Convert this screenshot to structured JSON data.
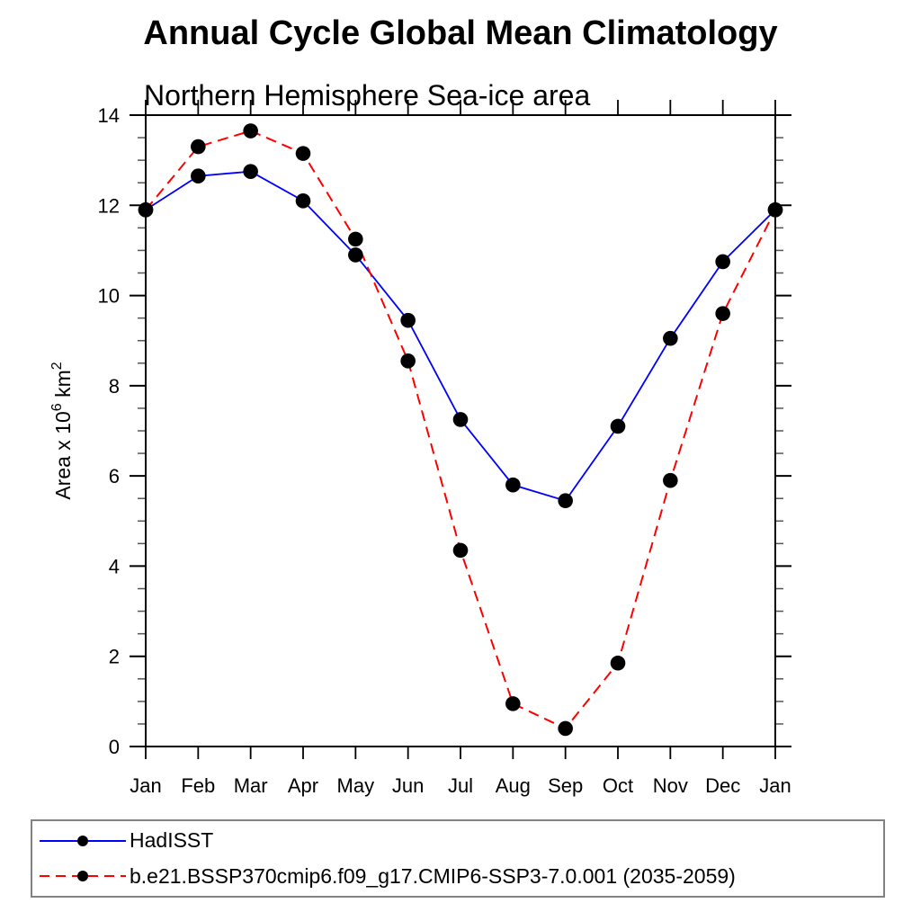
{
  "chart_data": {
    "type": "line",
    "title": "Annual Cycle Global Mean Climatology",
    "subtitle": "Northern Hemisphere Sea-ice area",
    "categories": [
      "Jan",
      "Feb",
      "Mar",
      "Apr",
      "May",
      "Jun",
      "Jul",
      "Aug",
      "Sep",
      "Oct",
      "Nov",
      "Dec",
      "Jan"
    ],
    "series": [
      {
        "name": "HadISST",
        "color": "#0000ff",
        "line_style": "solid",
        "marker": "filled-circle",
        "marker_color": "#000000",
        "values": [
          11.9,
          12.65,
          12.75,
          12.1,
          10.9,
          9.45,
          7.25,
          5.8,
          5.45,
          7.1,
          9.05,
          10.75,
          11.9
        ]
      },
      {
        "name": "b.e21.BSSP370cmip6.f09_g17.CMIP6-SSP3-7.0.001 (2035-2059)",
        "color": "#ff0000",
        "line_style": "dashed",
        "marker": "filled-circle",
        "marker_color": "#000000",
        "values": [
          11.9,
          13.3,
          13.65,
          13.15,
          11.25,
          8.55,
          4.35,
          0.95,
          0.4,
          1.85,
          5.9,
          9.6,
          11.9
        ]
      }
    ],
    "xlabel": "",
    "ylabel": "Area x 10^6 km^2",
    "ylabel_parts": [
      {
        "text": "Area x 10"
      },
      {
        "text": "6",
        "sup": true
      },
      {
        "text": " km"
      },
      {
        "text": "2",
        "sup": true
      }
    ],
    "ylim": [
      0,
      14
    ],
    "ytick_major_step": 2,
    "ytick_minor_step": 0.5,
    "ytick_labels": [
      "0",
      "2",
      "4",
      "6",
      "8",
      "10",
      "12",
      "14"
    ],
    "grid": false,
    "frame": "box-with-outward-ticks",
    "legend_position": "bottom-left",
    "axis_color": "#000000"
  }
}
